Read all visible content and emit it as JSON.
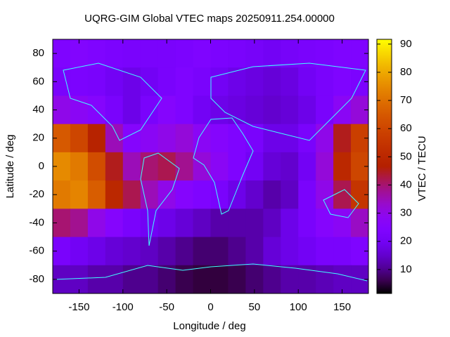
{
  "chart_data": {
    "type": "heatmap",
    "title": "UQRG-GIM Global VTEC maps 20250911.254.00000",
    "x_label": "Longitude / deg",
    "y_label": "Latitude / deg",
    "colorbar_label": "VTEC / TECU",
    "x": [
      -170,
      -150,
      -130,
      -110,
      -90,
      -70,
      -50,
      -30,
      -10,
      10,
      30,
      50,
      70,
      90,
      110,
      130,
      150,
      170
    ],
    "y": [
      80,
      60,
      40,
      20,
      0,
      -20,
      -40,
      -60,
      -80
    ],
    "z": [
      [
        24,
        25,
        24,
        23,
        22,
        22,
        22,
        23,
        24,
        23,
        22,
        21,
        20,
        21,
        22,
        23,
        24,
        24
      ],
      [
        22,
        23,
        22,
        20,
        18,
        20,
        22,
        24,
        22,
        20,
        18,
        17,
        16,
        17,
        20,
        22,
        24,
        23
      ],
      [
        30,
        28,
        26,
        22,
        18,
        22,
        26,
        24,
        20,
        18,
        17,
        16,
        15,
        16,
        18,
        22,
        28,
        32
      ],
      [
        65,
        60,
        48,
        35,
        26,
        28,
        30,
        32,
        28,
        26,
        24,
        22,
        18,
        18,
        22,
        30,
        45,
        58
      ],
      [
        75,
        72,
        62,
        45,
        35,
        40,
        42,
        38,
        32,
        28,
        24,
        20,
        16,
        15,
        20,
        32,
        50,
        60
      ],
      [
        72,
        74,
        66,
        50,
        42,
        35,
        30,
        26,
        24,
        22,
        18,
        15,
        12,
        14,
        22,
        30,
        42,
        55
      ],
      [
        40,
        38,
        30,
        26,
        22,
        20,
        18,
        16,
        14,
        12,
        12,
        12,
        14,
        18,
        22,
        26,
        28,
        34
      ],
      [
        22,
        20,
        18,
        16,
        15,
        14,
        12,
        10,
        8,
        8,
        10,
        12,
        16,
        18,
        20,
        22,
        22,
        24
      ],
      [
        14,
        14,
        12,
        12,
        10,
        10,
        8,
        6,
        5,
        5,
        6,
        8,
        10,
        12,
        12,
        13,
        14,
        14
      ]
    ],
    "xlim": [
      -180,
      180
    ],
    "ylim": [
      -90,
      90
    ],
    "xticks": [
      -150,
      -100,
      -50,
      0,
      50,
      100,
      150
    ],
    "yticks": [
      -80,
      -60,
      -40,
      -20,
      0,
      20,
      40,
      60,
      80
    ],
    "zlim": [
      1.5,
      91.7
    ],
    "zticks": [
      10,
      20,
      30,
      40,
      50,
      60,
      70,
      80,
      90
    ]
  }
}
